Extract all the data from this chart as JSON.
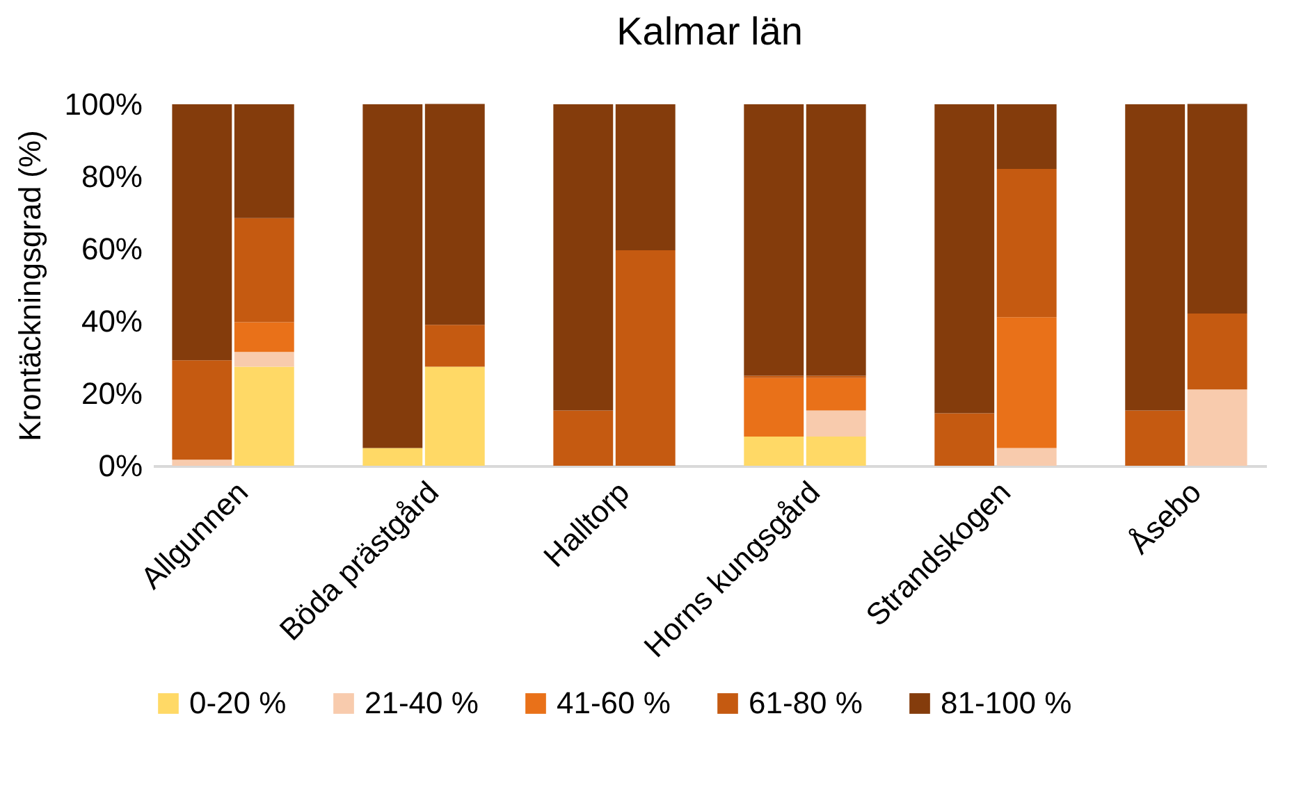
{
  "chart_data": {
    "type": "bar",
    "title": "Kalmar län",
    "ylabel": "Krontäckningsgrad (%)",
    "categories": [
      "Allgunnen",
      null,
      "Böda prästgård",
      null,
      "Halltorp",
      null,
      "Horns kungsgård",
      null,
      "Strandskogen",
      null,
      "Åsebo",
      null
    ],
    "stacked": true,
    "series": [
      {
        "name": "0-20 %",
        "color": "#ffd966",
        "values": [
          0,
          27.4,
          4.9,
          27.4,
          0,
          0,
          8.1,
          8.1,
          0,
          0,
          0,
          0
        ]
      },
      {
        "name": "21-40 %",
        "color": "#f8cbad",
        "values": [
          1.7,
          4.1,
          0,
          0,
          0,
          0,
          0,
          7.2,
          0,
          4.9,
          0,
          21.1
        ]
      },
      {
        "name": "41-60 %",
        "color": "#e97119",
        "values": [
          0,
          8.2,
          0,
          0,
          0,
          0,
          16.2,
          9.0,
          0,
          36.2,
          0,
          0
        ]
      },
      {
        "name": "61-80 %",
        "color": "#c55a11",
        "values": [
          27.5,
          28.8,
          0,
          11.6,
          15.3,
          59.6,
          0.6,
          0.6,
          14.5,
          41.0,
          15.3,
          21.0
        ]
      },
      {
        "name": "81-100 %",
        "color": "#843c0c",
        "values": [
          70.8,
          31.5,
          95.1,
          61.1,
          84.7,
          40.4,
          75.1,
          75.1,
          85.5,
          17.9,
          84.7,
          58.0
        ]
      }
    ],
    "ylim": [
      0,
      100
    ],
    "yticks": [
      {
        "value": 0,
        "label": "0%"
      },
      {
        "value": 20,
        "label": "20%"
      },
      {
        "value": 40,
        "label": "40%"
      },
      {
        "value": 60,
        "label": "60%"
      },
      {
        "value": 80,
        "label": "80%"
      },
      {
        "value": 100,
        "label": "100%"
      }
    ],
    "grid": false,
    "legend": "bottom"
  }
}
